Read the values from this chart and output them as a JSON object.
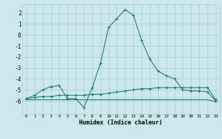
{
  "xlabel": "Humidex (Indice chaleur)",
  "bg_color": "#cce8ec",
  "grid_color": "#aacfd4",
  "line_color": "#1a7a6e",
  "x_ticks": [
    0,
    1,
    2,
    3,
    4,
    5,
    6,
    7,
    8,
    9,
    10,
    11,
    12,
    13,
    14,
    15,
    16,
    17,
    18,
    19,
    20,
    21,
    22,
    23
  ],
  "xlim": [
    -0.5,
    23.5
  ],
  "ylim": [
    -7.2,
    2.8
  ],
  "y_ticks": [
    -6,
    -5,
    -4,
    -3,
    -2,
    -1,
    0,
    1,
    2
  ],
  "line1_x": [
    0,
    1,
    2,
    3,
    4,
    5,
    6,
    7,
    8,
    9,
    10,
    11,
    12,
    13,
    14,
    15,
    16,
    17,
    18,
    19,
    20,
    21,
    22,
    23
  ],
  "line1_y": [
    -5.8,
    -5.5,
    -5.0,
    -4.7,
    -4.6,
    -5.8,
    -5.8,
    -6.6,
    -4.8,
    -2.6,
    0.7,
    1.5,
    2.3,
    1.8,
    -0.5,
    -2.2,
    -3.3,
    -3.7,
    -4.0,
    -5.0,
    -5.1,
    -5.1,
    -5.2,
    -6.0
  ],
  "line2_x": [
    0,
    1,
    2,
    3,
    4,
    5,
    6,
    7,
    8,
    9,
    10,
    11,
    12,
    13,
    14,
    15,
    16,
    17,
    18,
    19,
    20,
    21,
    22,
    23
  ],
  "line2_y": [
    -5.8,
    -5.7,
    -5.6,
    -5.6,
    -5.5,
    -5.5,
    -5.5,
    -5.5,
    -5.4,
    -5.4,
    -5.3,
    -5.2,
    -5.1,
    -5.0,
    -4.9,
    -4.9,
    -4.8,
    -4.8,
    -4.8,
    -4.8,
    -4.8,
    -4.8,
    -4.8,
    -5.9
  ],
  "line3_x": [
    0,
    1,
    2,
    3,
    4,
    5,
    6,
    7,
    8,
    9,
    10,
    11,
    12,
    13,
    14,
    15,
    16,
    17,
    18,
    19,
    20,
    21,
    22,
    23
  ],
  "line3_y": [
    -5.9,
    -5.9,
    -5.9,
    -5.9,
    -5.9,
    -5.9,
    -5.9,
    -5.9,
    -5.9,
    -5.9,
    -5.9,
    -5.9,
    -5.9,
    -5.9,
    -5.9,
    -5.9,
    -5.9,
    -5.9,
    -5.9,
    -5.9,
    -5.9,
    -5.9,
    -5.9,
    -6.1
  ]
}
